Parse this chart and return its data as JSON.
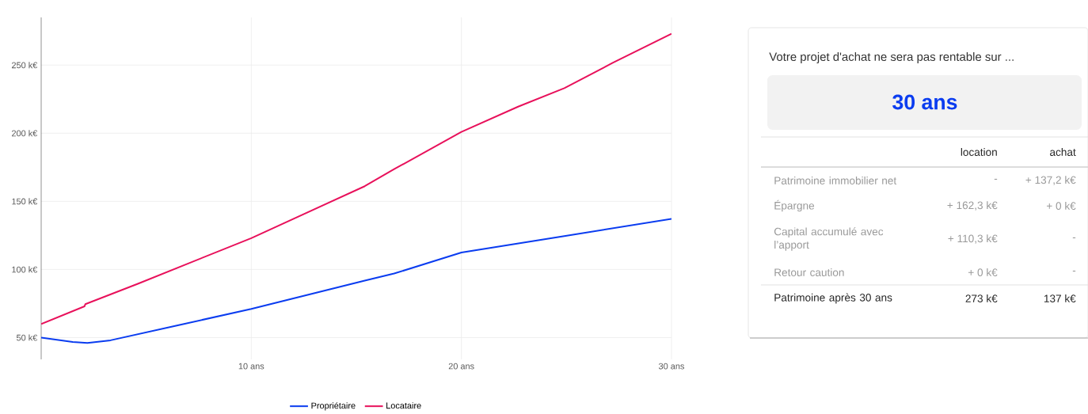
{
  "chart_data": [
    {
      "type": "line",
      "xlim": [
        0,
        30
      ],
      "ylim": [
        34,
        285
      ],
      "xticks": [
        {
          "value": 10,
          "label": "10 ans"
        },
        {
          "value": 20,
          "label": "20 ans"
        },
        {
          "value": 30,
          "label": "30 ans"
        }
      ],
      "yticks": [
        {
          "value": 50,
          "label": "50 k€"
        },
        {
          "value": 100,
          "label": "100 k€"
        },
        {
          "value": 150,
          "label": "150 k€"
        },
        {
          "value": 200,
          "label": "200 k€"
        },
        {
          "value": 250,
          "label": "250 k€"
        }
      ],
      "grid": true,
      "legend": "bottom",
      "series": [
        {
          "name": "Propriétaire",
          "color": "#0a3cf0",
          "x": [
            0,
            1.5,
            2.2,
            3.3,
            6.5,
            10,
            15.4,
            16.8,
            20,
            24.9,
            30
          ],
          "values": [
            50,
            46.8,
            46.1,
            48,
            59,
            71,
            91.8,
            97,
            112.4,
            124.5,
            137.1
          ]
        },
        {
          "name": "Locataire",
          "color": "#e8115b",
          "x": [
            0,
            2.06,
            2.1,
            4.6,
            10,
            15.4,
            16.8,
            20,
            22.7,
            24.9,
            27.2,
            30
          ],
          "values": [
            60,
            72.9,
            74.5,
            89.5,
            123,
            161.1,
            173.6,
            201,
            219.5,
            233.1,
            251.6,
            273
          ]
        }
      ]
    },
    {
      "type": "other",
      "title": "Votre projet d'achat ne sera pas rentable sur ...",
      "subtitle": "30 ans",
      "annotations": [
        "location",
        "achat",
        "Patrimoine immobilier net",
        "-",
        "+ 137,2 k€",
        "Épargne",
        "+ 162,3 k€",
        "+ 0 k€",
        "Capital accumulé avec l’apport",
        "+ 110,3 k€",
        "-",
        "Retour caution",
        "+ 0 k€",
        "-",
        "Patrimoine après 30 ans",
        "273 k€",
        "137 k€"
      ]
    }
  ]
}
